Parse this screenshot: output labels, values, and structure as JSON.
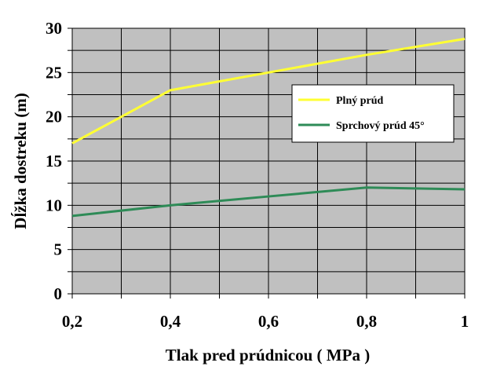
{
  "chart_data": {
    "type": "line",
    "xlabel": "Tlak pred prúdnicou ( MPa )",
    "ylabel": "Dĺžka dostreku (m)",
    "xlim": [
      0.2,
      1.0
    ],
    "ylim": [
      0,
      30
    ],
    "x_ticks": [
      {
        "value": 0.2,
        "label": "0,2"
      },
      {
        "value": 0.4,
        "label": "0,4"
      },
      {
        "value": 0.6,
        "label": "0,6"
      },
      {
        "value": 0.8,
        "label": "0,8"
      },
      {
        "value": 1.0,
        "label": "1"
      }
    ],
    "y_ticks": [
      {
        "value": 0,
        "label": "0"
      },
      {
        "value": 5,
        "label": "5"
      },
      {
        "value": 10,
        "label": "10"
      },
      {
        "value": 15,
        "label": "15"
      },
      {
        "value": 20,
        "label": "20"
      },
      {
        "value": 25,
        "label": "25"
      },
      {
        "value": 30,
        "label": "30"
      }
    ],
    "grid": true,
    "plot_background": "#c0c0c0",
    "legend_position": "right",
    "series": [
      {
        "name": "Plný prúd",
        "color": "#ffff33",
        "x": [
          0.2,
          0.4,
          0.6,
          0.8,
          1.0
        ],
        "y": [
          17,
          23,
          25,
          27,
          28.8
        ]
      },
      {
        "name": "Sprchový prúd 45°",
        "color": "#2e8b57",
        "x": [
          0.2,
          0.4,
          0.6,
          0.8,
          1.0
        ],
        "y": [
          8.8,
          10,
          11,
          12,
          11.8
        ]
      }
    ]
  }
}
